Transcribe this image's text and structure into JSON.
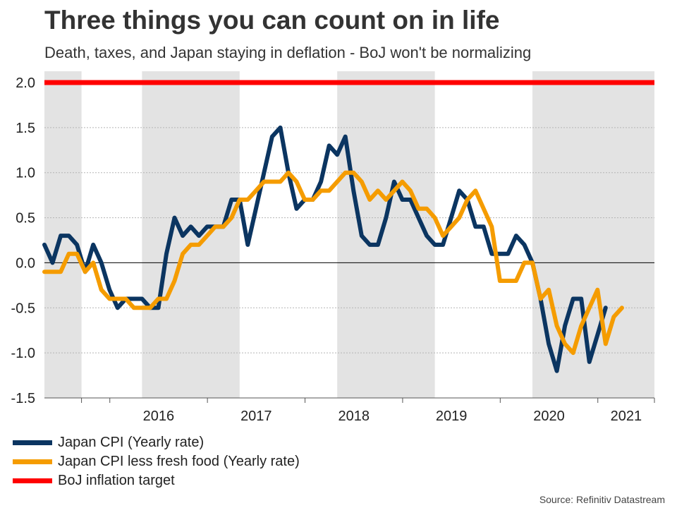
{
  "header": {
    "title": "Three things you can count on in life",
    "subtitle": "Death, taxes, and Japan staying in deflation - BoJ won't be normalizing"
  },
  "source": "Source: Refinitiv Datastream",
  "colors": {
    "cpi": "#0b3561",
    "core": "#f59c00",
    "target": "#ff0000",
    "band": "#e3e3e3",
    "grid": "#b5b5b5",
    "axis_text": "#222222"
  },
  "chart_data": {
    "type": "line",
    "title": "Three things you can count on in life",
    "subtitle": "Death, taxes, and Japan staying in deflation - BoJ won't be normalizing",
    "xlabel": "",
    "ylabel": "",
    "ylim": [
      -1.5,
      2.0
    ],
    "yticks": [
      2.0,
      1.5,
      1.0,
      0.5,
      0.0,
      -0.5,
      -1.0,
      -1.5
    ],
    "ytick_labels": [
      "2.0",
      "1.5",
      "1.0",
      "0.5",
      "0.0",
      "-0.5",
      "-1.0",
      "-1.5"
    ],
    "x_start": 2015.33,
    "x_end": 2021.58,
    "xticks": [
      2016,
      2017,
      2018,
      2019,
      2020,
      2021
    ],
    "xtick_labels": [
      "2016",
      "2017",
      "2018",
      "2019",
      "2020",
      "2021"
    ],
    "shaded_years": [
      [
        2015.33,
        2015.71
      ],
      [
        2016.33,
        2017.33
      ],
      [
        2018.33,
        2019.33
      ],
      [
        2020.33,
        2021.58
      ]
    ],
    "grid": true,
    "legend_position": "bottom-left",
    "series": [
      {
        "name": "Japan CPI (Yearly rate)",
        "color_key": "cpi",
        "start": 2015.33,
        "step": 0.0833333,
        "values": [
          0.2,
          0.0,
          0.3,
          0.3,
          0.2,
          -0.1,
          0.2,
          0.0,
          -0.3,
          -0.5,
          -0.4,
          -0.4,
          -0.4,
          -0.5,
          -0.5,
          0.1,
          0.5,
          0.3,
          0.4,
          0.3,
          0.4,
          0.4,
          0.4,
          0.7,
          0.7,
          0.2,
          0.6,
          1.0,
          1.4,
          1.5,
          1.0,
          0.6,
          0.7,
          0.7,
          0.9,
          1.3,
          1.2,
          1.4,
          0.8,
          0.3,
          0.2,
          0.2,
          0.5,
          0.9,
          0.7,
          0.7,
          0.5,
          0.3,
          0.2,
          0.2,
          0.5,
          0.8,
          0.7,
          0.4,
          0.4,
          0.1,
          0.1,
          0.1,
          0.3,
          0.2,
          0.0,
          -0.4,
          -0.9,
          -1.2,
          -0.7,
          -0.4,
          -0.4,
          -1.1,
          -0.8,
          -0.5
        ]
      },
      {
        "name": "Japan CPI less fresh food (Yearly rate)",
        "color_key": "core",
        "start": 2015.33,
        "step": 0.0833333,
        "values": [
          -0.1,
          -0.1,
          -0.1,
          0.1,
          0.1,
          -0.1,
          0.0,
          -0.3,
          -0.4,
          -0.4,
          -0.4,
          -0.5,
          -0.5,
          -0.5,
          -0.4,
          -0.4,
          -0.2,
          0.1,
          0.2,
          0.2,
          0.3,
          0.4,
          0.4,
          0.5,
          0.7,
          0.7,
          0.8,
          0.9,
          0.9,
          0.9,
          1.0,
          0.9,
          0.7,
          0.7,
          0.8,
          0.8,
          0.9,
          1.0,
          1.0,
          0.9,
          0.7,
          0.8,
          0.7,
          0.8,
          0.9,
          0.8,
          0.6,
          0.6,
          0.5,
          0.3,
          0.4,
          0.5,
          0.7,
          0.8,
          0.6,
          0.4,
          -0.2,
          -0.2,
          -0.2,
          0.0,
          0.0,
          -0.4,
          -0.3,
          -0.7,
          -0.9,
          -1.0,
          -0.7,
          -0.5,
          -0.3,
          -0.9,
          -0.6,
          -0.5
        ]
      },
      {
        "name": "BoJ inflation target",
        "color_key": "target",
        "constant": 2.0
      }
    ]
  }
}
